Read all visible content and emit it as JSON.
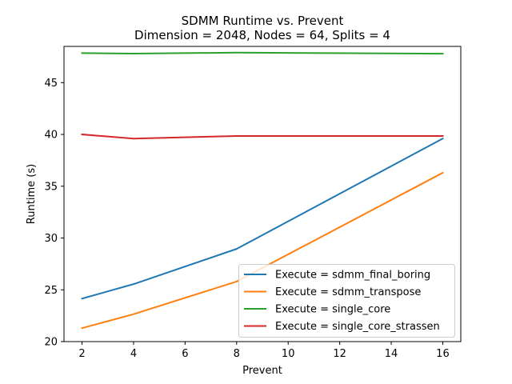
{
  "chart_data": {
    "type": "line",
    "title": "SDMM Runtime vs. Prevent",
    "subtitle": "Dimension = 2048, Nodes = 64, Splits = 4",
    "xlabel": "Prevent",
    "ylabel": "Runtime (s)",
    "x": [
      2,
      4,
      8,
      16
    ],
    "xlim": [
      1.3,
      16.7
    ],
    "ylim": [
      20,
      48.5
    ],
    "xticks": [
      2,
      4,
      6,
      8,
      10,
      12,
      14,
      16
    ],
    "yticks": [
      20,
      25,
      30,
      35,
      40,
      45
    ],
    "grid": false,
    "legend_position": "lower-right",
    "series": [
      {
        "name": "Execute = sdmm_final_boring",
        "color": "#1f77b4",
        "values": [
          24.15,
          25.55,
          28.95,
          39.6
        ]
      },
      {
        "name": "Execute = sdmm_transpose",
        "color": "#ff7f0e",
        "values": [
          21.3,
          22.65,
          25.8,
          36.3
        ]
      },
      {
        "name": "Execute = single_core",
        "color": "#2ca02c",
        "values": [
          47.85,
          47.8,
          47.9,
          47.8
        ]
      },
      {
        "name": "Execute = single_core_strassen",
        "color": "#d62728",
        "values": [
          40.0,
          39.6,
          39.85,
          39.85
        ]
      }
    ]
  }
}
